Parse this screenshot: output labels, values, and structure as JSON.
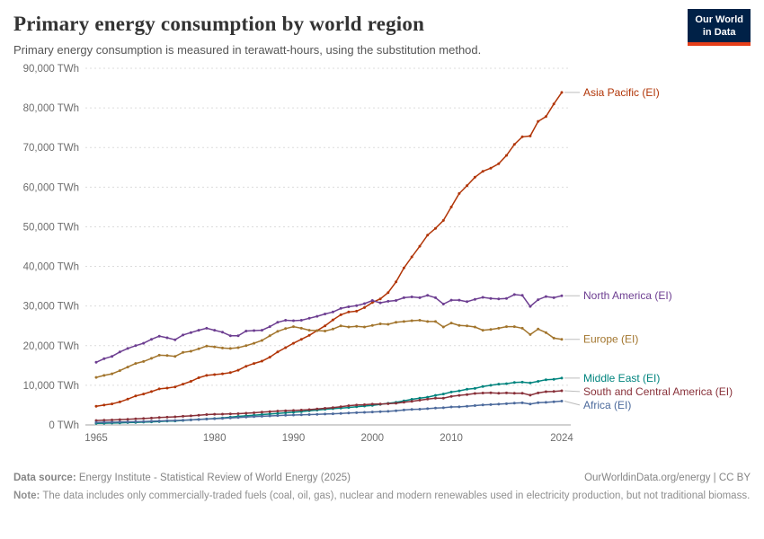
{
  "header": {
    "title": "Primary energy consumption by world region",
    "subtitle": "Primary energy consumption is measured in terawatt-hours, using the substitution method.",
    "logo": {
      "line1": "Our World",
      "line2": "in Data",
      "bg": "#002147",
      "accent": "#E63E19"
    }
  },
  "chart_data": {
    "type": "line",
    "title": "Primary energy consumption by world region",
    "unit": "TWh",
    "ylim": [
      0,
      90000
    ],
    "grid": true,
    "legend_position": "right-of-line-ends",
    "x": [
      1965,
      1966,
      1967,
      1968,
      1969,
      1970,
      1971,
      1972,
      1973,
      1974,
      1975,
      1976,
      1977,
      1978,
      1979,
      1980,
      1981,
      1982,
      1983,
      1984,
      1985,
      1986,
      1987,
      1988,
      1989,
      1990,
      1991,
      1992,
      1993,
      1994,
      1995,
      1996,
      1997,
      1998,
      1999,
      2000,
      2001,
      2002,
      2003,
      2004,
      2005,
      2006,
      2007,
      2008,
      2009,
      2010,
      2011,
      2012,
      2013,
      2014,
      2015,
      2016,
      2017,
      2018,
      2019,
      2020,
      2021,
      2022,
      2023,
      2024
    ],
    "x_ticks": [
      1965,
      1980,
      1990,
      2000,
      2010,
      2024
    ],
    "y_ticks": [
      {
        "value": 0,
        "label": "0 TWh"
      },
      {
        "value": 10000,
        "label": "10,000 TWh"
      },
      {
        "value": 20000,
        "label": "20,000 TWh"
      },
      {
        "value": 30000,
        "label": "30,000 TWh"
      },
      {
        "value": 40000,
        "label": "40,000 TWh"
      },
      {
        "value": 50000,
        "label": "50,000 TWh"
      },
      {
        "value": 60000,
        "label": "60,000 TWh"
      },
      {
        "value": 70000,
        "label": "70,000 TWh"
      },
      {
        "value": 80000,
        "label": "80,000 TWh"
      },
      {
        "value": 90000,
        "label": "90,000 TWh"
      }
    ],
    "series": [
      {
        "id": "asia-pacific",
        "label": "Asia Pacific (EI)",
        "color": "#B13507",
        "values": [
          4700,
          5000,
          5300,
          5800,
          6500,
          7300,
          7800,
          8400,
          9100,
          9300,
          9600,
          10300,
          11000,
          11900,
          12500,
          12700,
          12900,
          13200,
          13800,
          14800,
          15500,
          16100,
          17100,
          18400,
          19500,
          20600,
          21600,
          22600,
          23800,
          25000,
          26500,
          27800,
          28500,
          28700,
          29600,
          30900,
          31800,
          33400,
          36100,
          39600,
          42400,
          45100,
          47900,
          49600,
          51600,
          55000,
          58400,
          60400,
          62500,
          64000,
          64800,
          65900,
          68000,
          70800,
          72700,
          72900,
          76600,
          77800,
          81000,
          83900
        ]
      },
      {
        "id": "north-america",
        "label": "North America (EI)",
        "color": "#6D3E91",
        "values": [
          15800,
          16700,
          17300,
          18400,
          19300,
          20000,
          20600,
          21600,
          22400,
          22000,
          21500,
          22700,
          23300,
          23900,
          24400,
          23900,
          23400,
          22500,
          22500,
          23700,
          23800,
          23900,
          24800,
          25900,
          26400,
          26300,
          26400,
          26900,
          27400,
          28000,
          28500,
          29400,
          29800,
          30100,
          30600,
          31400,
          30800,
          31200,
          31400,
          32100,
          32300,
          32100,
          32700,
          32100,
          30500,
          31500,
          31500,
          31100,
          31700,
          32200,
          31900,
          31800,
          31900,
          32900,
          32700,
          29900,
          31600,
          32400,
          32100,
          32600
        ]
      },
      {
        "id": "europe",
        "label": "Europe (EI)",
        "color": "#A2752D",
        "values": [
          12000,
          12500,
          12900,
          13700,
          14600,
          15500,
          16000,
          16800,
          17600,
          17500,
          17300,
          18300,
          18600,
          19200,
          19900,
          19700,
          19400,
          19300,
          19500,
          20000,
          20600,
          21300,
          22500,
          23600,
          24300,
          24800,
          24400,
          23900,
          23800,
          23700,
          24200,
          25000,
          24700,
          24900,
          24700,
          25100,
          25500,
          25400,
          25900,
          26100,
          26300,
          26400,
          26100,
          26100,
          24700,
          25700,
          25100,
          25000,
          24700,
          23900,
          24100,
          24400,
          24800,
          24800,
          24400,
          22800,
          24200,
          23300,
          21900,
          21600
        ]
      },
      {
        "id": "middle-east",
        "label": "Middle East (EI)",
        "color": "#00847E",
        "values": [
          400,
          440,
          480,
          530,
          580,
          640,
          700,
          780,
          870,
          950,
          1000,
          1130,
          1260,
          1380,
          1500,
          1620,
          1750,
          1950,
          2150,
          2300,
          2450,
          2600,
          2750,
          2900,
          3050,
          3200,
          3350,
          3550,
          3750,
          3950,
          4100,
          4250,
          4400,
          4600,
          4750,
          4950,
          5200,
          5450,
          5700,
          6050,
          6450,
          6750,
          7000,
          7450,
          7800,
          8300,
          8600,
          9000,
          9200,
          9700,
          10000,
          10300,
          10400,
          10700,
          10800,
          10600,
          11000,
          11400,
          11500,
          11800
        ]
      },
      {
        "id": "south-central-america",
        "label": "South and Central America (EI)",
        "color": "#883039",
        "values": [
          1120,
          1180,
          1250,
          1340,
          1430,
          1530,
          1610,
          1730,
          1860,
          1960,
          2050,
          2180,
          2290,
          2440,
          2600,
          2700,
          2730,
          2790,
          2830,
          2950,
          3050,
          3210,
          3340,
          3480,
          3560,
          3640,
          3750,
          3850,
          4010,
          4190,
          4380,
          4600,
          4850,
          5010,
          5090,
          5230,
          5290,
          5350,
          5460,
          5730,
          5960,
          6230,
          6510,
          6760,
          6750,
          7190,
          7460,
          7660,
          7930,
          8050,
          8100,
          8000,
          8060,
          8000,
          8000,
          7500,
          8060,
          8380,
          8450,
          8620
        ]
      },
      {
        "id": "africa",
        "label": "Africa (EI)",
        "color": "#4C6A9C",
        "values": [
          620,
          650,
          680,
          720,
          770,
          820,
          870,
          930,
          1000,
          1060,
          1110,
          1190,
          1280,
          1360,
          1470,
          1560,
          1660,
          1760,
          1860,
          1990,
          2090,
          2170,
          2260,
          2350,
          2430,
          2500,
          2560,
          2600,
          2660,
          2740,
          2820,
          2900,
          2990,
          3080,
          3170,
          3260,
          3340,
          3430,
          3580,
          3760,
          3890,
          3960,
          4110,
          4270,
          4330,
          4530,
          4560,
          4720,
          4870,
          5030,
          5120,
          5230,
          5340,
          5480,
          5570,
          5290,
          5620,
          5680,
          5830,
          6000
        ]
      }
    ]
  },
  "footer": {
    "datasource_label": "Data source:",
    "datasource_text": "Energy Institute - Statistical Review of World Energy (2025)",
    "attribution": "OurWorldinData.org/energy | CC BY",
    "note_label": "Note:",
    "note_text": "The data includes only commercially-traded fuels (coal, oil, gas), nuclear and modern renewables used in electricity production, but not traditional biomass."
  }
}
